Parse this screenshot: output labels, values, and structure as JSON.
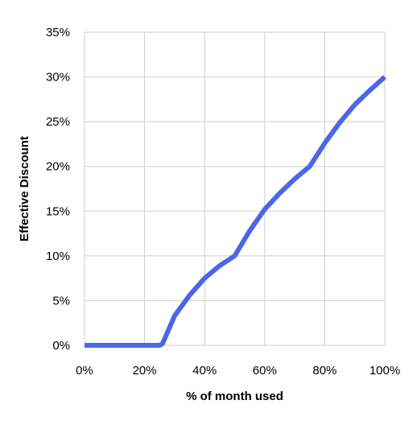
{
  "chart_data": {
    "type": "line",
    "title": "",
    "xlabel": "% of month used",
    "ylabel": "Effective Discount",
    "x_ticks": [
      "0%",
      "20%",
      "40%",
      "60%",
      "80%",
      "100%"
    ],
    "y_ticks": [
      "0%",
      "5%",
      "10%",
      "15%",
      "20%",
      "25%",
      "30%",
      "35%"
    ],
    "xlim": [
      0,
      100
    ],
    "ylim": [
      0,
      35
    ],
    "grid": true,
    "legend": "none",
    "series": [
      {
        "color": "#4a67e8",
        "x": [
          0,
          25,
          26,
          30,
          35,
          40,
          45,
          50,
          55,
          60,
          65,
          70,
          75,
          80,
          85,
          90,
          95,
          100
        ],
        "y": [
          0,
          0,
          0.2,
          3.3,
          5.6,
          7.5,
          8.9,
          10.0,
          12.8,
          15.2,
          17.0,
          18.6,
          20.0,
          22.6,
          24.9,
          26.9,
          28.5,
          30.0
        ]
      }
    ]
  }
}
